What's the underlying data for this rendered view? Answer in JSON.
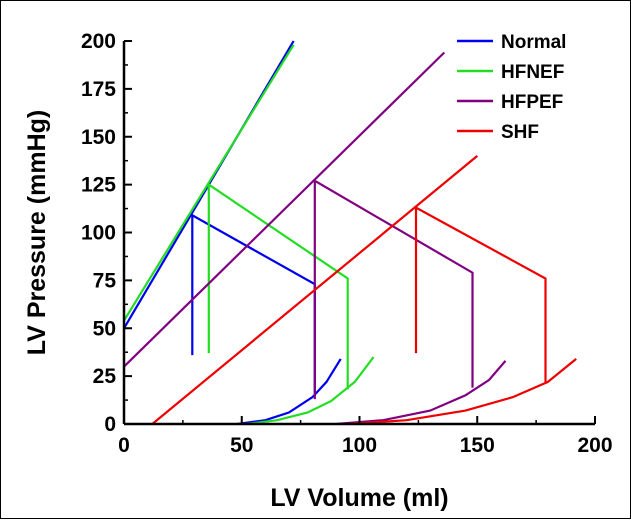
{
  "chart_data": {
    "type": "line",
    "title": "",
    "xlabel": "LV Volume (ml)",
    "ylabel": "LV Pressure (mmHg)",
    "xlim": [
      0,
      200
    ],
    "ylim": [
      0,
      200
    ],
    "x_ticks": [
      0,
      50,
      100,
      150,
      200
    ],
    "y_ticks": [
      0,
      25,
      50,
      75,
      100,
      125,
      150,
      175,
      200
    ],
    "grid": false,
    "legend_position": "top-right",
    "series": [
      {
        "name": "Normal",
        "color": "#0000ee",
        "lines": [
          [
            [
              0,
              50
            ],
            [
              72,
              200
            ]
          ],
          [
            [
              29,
              36
            ],
            [
              29,
              109
            ],
            [
              81,
              73
            ],
            [
              81,
              16
            ]
          ],
          [
            [
              48,
              0
            ],
            [
              60,
              2
            ],
            [
              70,
              6
            ],
            [
              80,
              14
            ],
            [
              86,
              22
            ],
            [
              92,
              34
            ]
          ]
        ]
      },
      {
        "name": "HFNEF",
        "color": "#22dd22",
        "lines": [
          [
            [
              0,
              54
            ],
            [
              72,
              198
            ]
          ],
          [
            [
              36,
              37
            ],
            [
              36,
              125
            ],
            [
              95,
              76
            ],
            [
              95,
              18
            ]
          ],
          [
            [
              52,
              0
            ],
            [
              65,
              2
            ],
            [
              78,
              6
            ],
            [
              88,
              12
            ],
            [
              98,
              22
            ],
            [
              106,
              35
            ]
          ]
        ]
      },
      {
        "name": "HFPEF",
        "color": "#800080",
        "lines": [
          [
            [
              0,
              30
            ],
            [
              136,
              194
            ]
          ],
          [
            [
              81,
              13
            ],
            [
              81,
              127
            ],
            [
              148,
              79
            ],
            [
              148,
              19
            ]
          ],
          [
            [
              90,
              0
            ],
            [
              110,
              2
            ],
            [
              130,
              7
            ],
            [
              145,
              15
            ],
            [
              155,
              23
            ],
            [
              162,
              33
            ]
          ]
        ]
      },
      {
        "name": "SHF",
        "color": "#ee0000",
        "lines": [
          [
            [
              12,
              0
            ],
            [
              150,
              140
            ]
          ],
          [
            [
              124,
              37
            ],
            [
              124,
              113
            ],
            [
              179,
              76
            ],
            [
              179,
              21
            ]
          ],
          [
            [
              95,
              0
            ],
            [
              120,
              2
            ],
            [
              145,
              7
            ],
            [
              165,
              14
            ],
            [
              180,
              22
            ],
            [
              192,
              34
            ]
          ]
        ]
      }
    ]
  }
}
